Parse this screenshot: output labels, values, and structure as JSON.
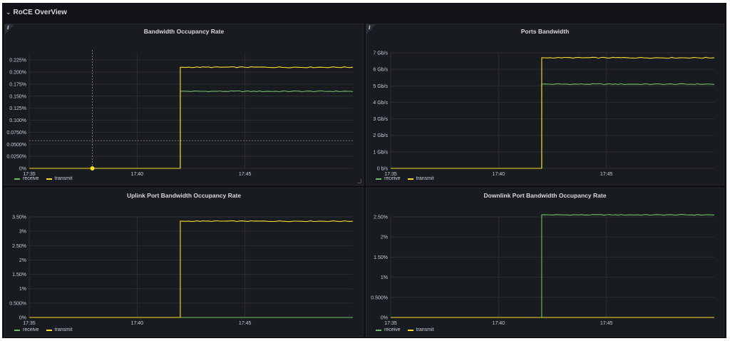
{
  "row": {
    "title": "RoCE OverView"
  },
  "colors": {
    "receive": "#73bf69",
    "transmit": "#fade2a",
    "grid": "#2b2e33",
    "axis_text": "#c7d0d9"
  },
  "legend": {
    "receive": "receive",
    "transmit": "transmit"
  },
  "panels": [
    {
      "title": "Bandwidth Occupancy Rate"
    },
    {
      "title": "Ports Bandwidth"
    },
    {
      "title": "Uplink Port Bandwidth Occupancy Rate"
    },
    {
      "title": "Downlink Port Bandwidth Occupancy Rate"
    }
  ],
  "chart_data": [
    {
      "type": "line",
      "title": "Bandwidth Occupancy Rate",
      "x_ticks": [
        "17:35",
        "17:40",
        "17:45"
      ],
      "y_ticks": [
        "0%",
        "0.0250%",
        "0.0500%",
        "0.0750%",
        "0.100%",
        "0.125%",
        "0.150%",
        "0.175%",
        "0.200%",
        "0.225%"
      ],
      "ylim": [
        0,
        0.24
      ],
      "x_range": [
        "17:35",
        "17:50"
      ],
      "series": [
        {
          "name": "receive",
          "x": [
            "17:35",
            "17:42",
            "17:42",
            "17:50"
          ],
          "values": [
            0,
            0,
            0.16,
            0.16
          ]
        },
        {
          "name": "transmit",
          "x": [
            "17:35",
            "17:42",
            "17:42",
            "17:50"
          ],
          "values": [
            0,
            0,
            0.21,
            0.21
          ]
        }
      ]
    },
    {
      "type": "line",
      "title": "Ports Bandwidth",
      "x_ticks": [
        "17:35",
        "17:40",
        "17:45"
      ],
      "y_ticks": [
        "0 b/s",
        "1 Gb/s",
        "2 Gb/s",
        "3 Gb/s",
        "4 Gb/s",
        "5 Gb/s",
        "6 Gb/s",
        "7 Gb/s"
      ],
      "ylim": [
        0,
        7
      ],
      "x_range": [
        "17:35",
        "17:50"
      ],
      "series": [
        {
          "name": "receive",
          "x": [
            "17:35",
            "17:42",
            "17:42",
            "17:50"
          ],
          "values": [
            0,
            0,
            5.1,
            5.1
          ]
        },
        {
          "name": "transmit",
          "x": [
            "17:35",
            "17:42",
            "17:42",
            "17:50"
          ],
          "values": [
            0,
            0,
            6.7,
            6.7
          ]
        }
      ]
    },
    {
      "type": "line",
      "title": "Uplink Port Bandwidth Occupancy Rate",
      "x_ticks": [
        "17:35",
        "17:40",
        "17:45"
      ],
      "y_ticks": [
        "0%",
        "0.500%",
        "1%",
        "1.50%",
        "2%",
        "2.50%",
        "3%",
        "3.50%"
      ],
      "ylim": [
        0,
        3.5
      ],
      "x_range": [
        "17:35",
        "17:50"
      ],
      "series": [
        {
          "name": "receive",
          "x": [
            "17:35",
            "17:50"
          ],
          "values": [
            0,
            0
          ]
        },
        {
          "name": "transmit",
          "x": [
            "17:35",
            "17:42",
            "17:42",
            "17:50"
          ],
          "values": [
            0,
            0,
            3.35,
            3.35
          ]
        }
      ]
    },
    {
      "type": "line",
      "title": "Downlink Port Bandwidth Occupancy Rate",
      "x_ticks": [
        "17:35",
        "17:40",
        "17:45"
      ],
      "y_ticks": [
        "0%",
        "0.500%",
        "1%",
        "1.50%",
        "2%",
        "2.50%"
      ],
      "ylim": [
        0,
        2.5
      ],
      "x_range": [
        "17:35",
        "17:50"
      ],
      "series": [
        {
          "name": "receive",
          "x": [
            "17:35",
            "17:42",
            "17:42",
            "17:50"
          ],
          "values": [
            0,
            0,
            2.55,
            2.55
          ]
        },
        {
          "name": "transmit",
          "x": [
            "17:35",
            "17:50"
          ],
          "values": [
            0,
            0
          ]
        }
      ]
    }
  ]
}
